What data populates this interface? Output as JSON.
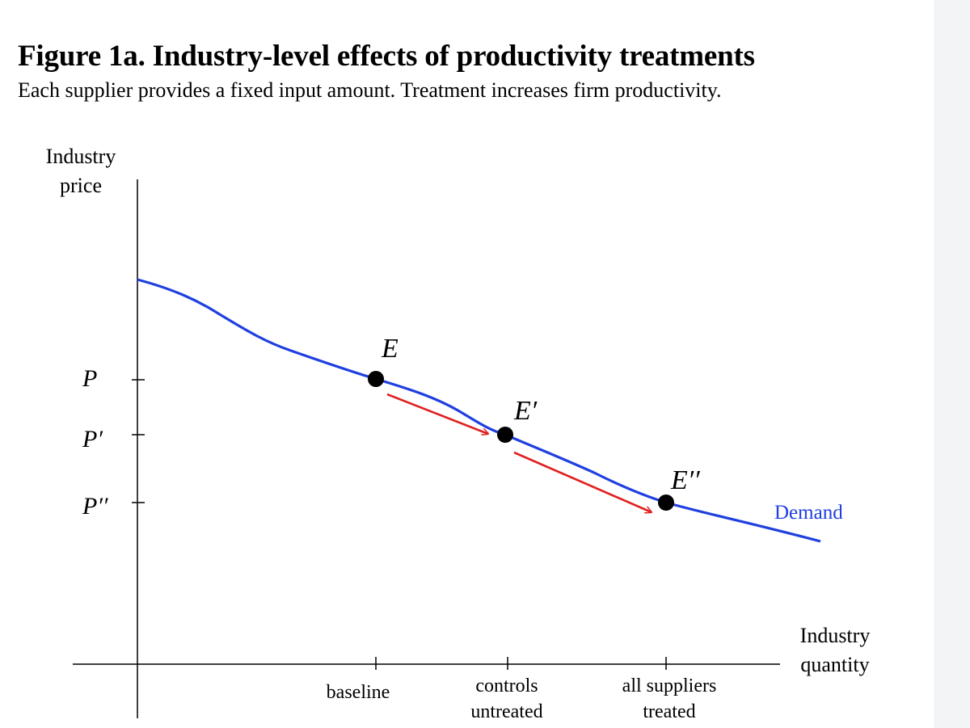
{
  "figure": {
    "title": "Figure 1a. Industry-level effects of productivity treatments",
    "subtitle": "Each supplier provides a fixed input amount. Treatment increases firm productivity."
  },
  "axes": {
    "y_label_line1": "Industry",
    "y_label_line2": "price",
    "x_label_line1": "Industry",
    "x_label_line2": "quantity"
  },
  "price_ticks": [
    "P",
    "P′",
    "P′′"
  ],
  "quantity_ticks": {
    "baseline": "baseline",
    "controls_line1": "controls",
    "controls_line2": "untreated",
    "all_line1": "all suppliers",
    "all_line2": "treated"
  },
  "points": {
    "e": "E",
    "e_prime": "E′",
    "e_double_prime": "E′′"
  },
  "curve": {
    "label": "Demand"
  },
  "colors": {
    "demand": "#1f3fe0",
    "arrow": "#e02020",
    "axis": "#000000"
  }
}
